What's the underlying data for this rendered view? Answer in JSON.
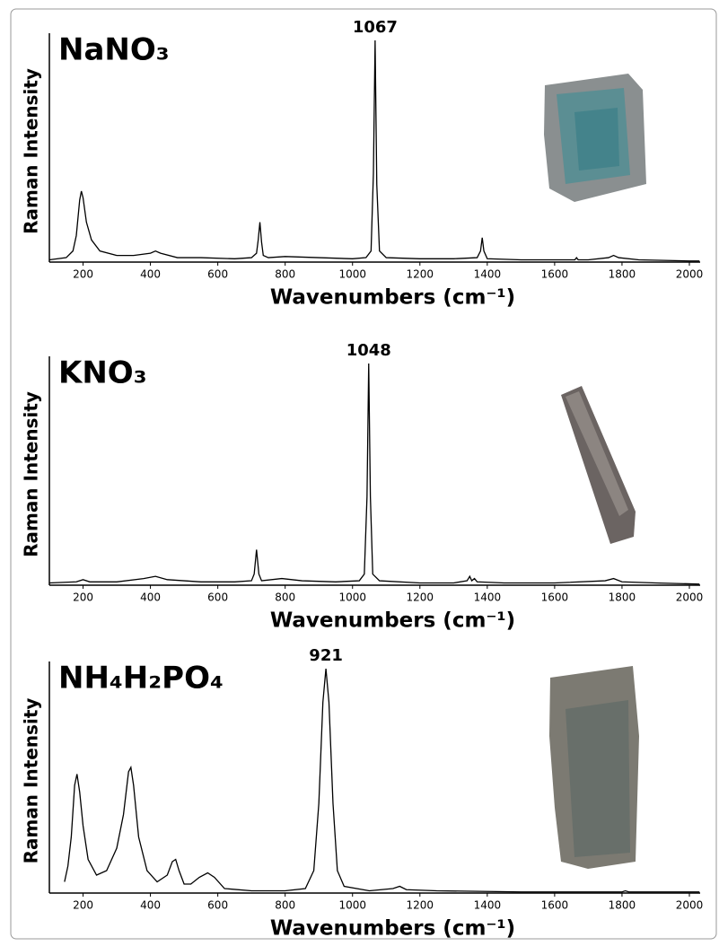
{
  "chart_data": [
    {
      "type": "line",
      "title": "NaNO₃",
      "xlabel": "Wavenumbers (cm⁻¹)",
      "ylabel": "Raman Intensity",
      "color": "#000000",
      "x": [
        100,
        150,
        170,
        180,
        190,
        195,
        200,
        210,
        225,
        250,
        300,
        350,
        400,
        415,
        430,
        480,
        550,
        650,
        700,
        715,
        720,
        725,
        730,
        735,
        750,
        800,
        900,
        1000,
        1040,
        1055,
        1062,
        1067,
        1072,
        1080,
        1100,
        1200,
        1300,
        1370,
        1380,
        1385,
        1390,
        1400,
        1500,
        1600,
        1660,
        1665,
        1670,
        1700,
        1760,
        1775,
        1790,
        1850,
        2000,
        2030
      ],
      "values": [
        1,
        2,
        5,
        12,
        28,
        32,
        29,
        18,
        10,
        5,
        3,
        3,
        4,
        5,
        4,
        2,
        2,
        1.5,
        2,
        4,
        10,
        18,
        9,
        3,
        2,
        2.5,
        2,
        1.5,
        2,
        5,
        40,
        100,
        35,
        5,
        2,
        1.5,
        1.5,
        2,
        5,
        11,
        5,
        1.5,
        1,
        1,
        1,
        2,
        1,
        1,
        2,
        3,
        2,
        1,
        0.5,
        0.5
      ],
      "xlim": [
        100,
        2032
      ],
      "ylim": [
        0,
        100
      ],
      "xticks": [
        200,
        400,
        600,
        800,
        1000,
        1200,
        1400,
        1600,
        1800,
        2000
      ],
      "annotations": [
        {
          "x": 1067,
          "y": 100,
          "text": "1067"
        }
      ]
    },
    {
      "type": "line",
      "title": "KNO₃",
      "xlabel": "Wavenumbers (cm⁻¹)",
      "ylabel": "Raman Intensity",
      "color": "#000000",
      "x": [
        100,
        180,
        200,
        220,
        300,
        380,
        415,
        450,
        550,
        650,
        700,
        708,
        715,
        722,
        730,
        790,
        850,
        950,
        1020,
        1035,
        1043,
        1048,
        1053,
        1060,
        1080,
        1200,
        1300,
        1340,
        1348,
        1354,
        1362,
        1370,
        1450,
        1600,
        1750,
        1775,
        1800,
        1900,
        2030
      ],
      "values": [
        1,
        1.5,
        2.5,
        1.5,
        1.5,
        3,
        4,
        2.5,
        1.5,
        1.5,
        2,
        5,
        16,
        5,
        2,
        3,
        2,
        1.5,
        2,
        5,
        40,
        100,
        40,
        5,
        2,
        1,
        1,
        2,
        4,
        2,
        3,
        1.5,
        1,
        1,
        2,
        3,
        1.5,
        1,
        0.5
      ],
      "xlim": [
        100,
        2032
      ],
      "ylim": [
        0,
        100
      ],
      "xticks": [
        200,
        400,
        600,
        800,
        1000,
        1200,
        1400,
        1600,
        1800,
        2000
      ],
      "annotations": [
        {
          "x": 1048,
          "y": 100,
          "text": "1048"
        }
      ]
    },
    {
      "type": "line",
      "title": "NH₄H₂PO₄",
      "xlabel": "Wavenumbers (cm⁻¹)",
      "ylabel": "Raman Intensity",
      "color": "#000000",
      "x": [
        145,
        155,
        165,
        175,
        182,
        190,
        200,
        215,
        240,
        270,
        300,
        320,
        335,
        342,
        350,
        365,
        390,
        420,
        450,
        465,
        475,
        485,
        500,
        520,
        545,
        570,
        590,
        620,
        700,
        800,
        860,
        885,
        900,
        912,
        921,
        930,
        942,
        955,
        975,
        1050,
        1120,
        1140,
        1160,
        1250,
        1500,
        1800,
        1810,
        1820,
        2030
      ],
      "values": [
        5,
        12,
        25,
        48,
        53,
        45,
        30,
        15,
        8,
        10,
        20,
        35,
        54,
        56,
        48,
        25,
        10,
        5,
        8,
        14,
        15,
        10,
        4,
        4,
        7,
        9,
        7,
        2,
        1,
        1,
        2,
        10,
        40,
        85,
        100,
        85,
        40,
        10,
        3,
        1,
        2,
        3,
        1.5,
        1,
        0.5,
        0.5,
        1,
        0.5,
        0.5
      ],
      "xlim": [
        100,
        2032
      ],
      "ylim": [
        0,
        100
      ],
      "xticks": [
        200,
        400,
        600,
        800,
        1000,
        1200,
        1400,
        1600,
        1800,
        2000
      ],
      "annotations": [
        {
          "x": 921,
          "y": 100,
          "text": "921"
        }
      ]
    }
  ]
}
